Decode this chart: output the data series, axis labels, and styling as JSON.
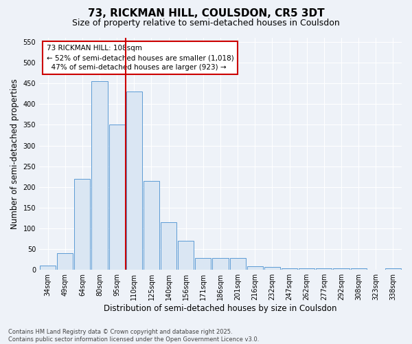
{
  "title": "73, RICKMAN HILL, COULSDON, CR5 3DT",
  "subtitle": "Size of property relative to semi-detached houses in Coulsdon",
  "xlabel": "Distribution of semi-detached houses by size in Coulsdon",
  "ylabel": "Number of semi-detached properties",
  "categories": [
    "34sqm",
    "49sqm",
    "64sqm",
    "80sqm",
    "95sqm",
    "110sqm",
    "125sqm",
    "140sqm",
    "156sqm",
    "171sqm",
    "186sqm",
    "201sqm",
    "216sqm",
    "232sqm",
    "247sqm",
    "262sqm",
    "277sqm",
    "292sqm",
    "308sqm",
    "323sqm",
    "338sqm"
  ],
  "values": [
    10,
    40,
    220,
    455,
    350,
    430,
    215,
    115,
    70,
    28,
    28,
    28,
    9,
    6,
    4,
    3,
    3,
    3,
    3,
    0,
    4
  ],
  "bar_color": "#dae6f3",
  "bar_edge_color": "#5b9bd5",
  "vline_color": "#cc0000",
  "vline_pos": 4.5,
  "annotation_text": "73 RICKMAN HILL: 108sqm\n← 52% of semi-detached houses are smaller (1,018)\n  47% of semi-detached houses are larger (923) →",
  "annotation_box_color": "#cc0000",
  "ylim": [
    0,
    560
  ],
  "yticks": [
    0,
    50,
    100,
    150,
    200,
    250,
    300,
    350,
    400,
    450,
    500,
    550
  ],
  "footnote": "Contains HM Land Registry data © Crown copyright and database right 2025.\nContains public sector information licensed under the Open Government Licence v3.0.",
  "bg_color": "#eef2f8",
  "plot_bg_color": "#eef2f8",
  "title_fontsize": 11,
  "subtitle_fontsize": 9,
  "tick_fontsize": 7,
  "label_fontsize": 8.5,
  "footnote_fontsize": 6
}
